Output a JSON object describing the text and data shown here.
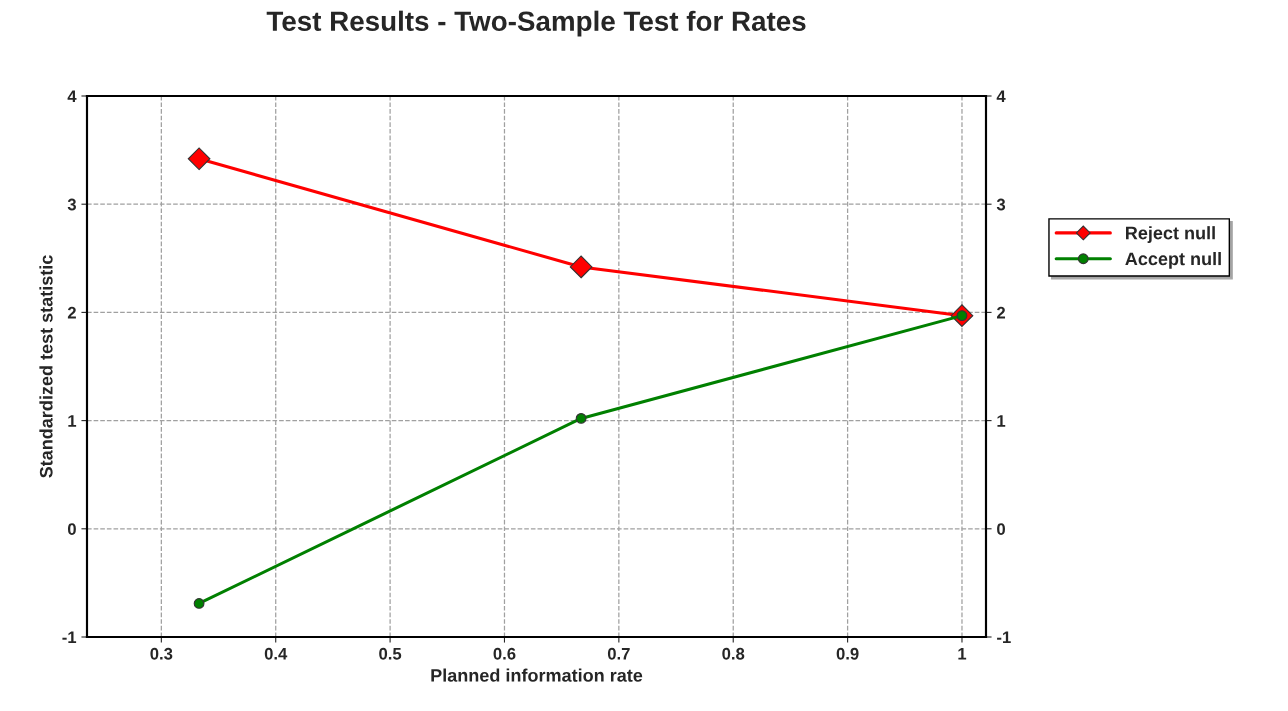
{
  "chart_data": {
    "type": "line",
    "title": "Test Results - Two-Sample Test for Rates",
    "xlabel": "Planned information rate",
    "ylabel": "Standardized test statistic",
    "x": [
      0.333,
      0.667,
      1.0
    ],
    "series": [
      {
        "name": "Reject null",
        "color": "#ff0000",
        "marker": "diamond",
        "values": [
          3.42,
          2.42,
          1.97
        ]
      },
      {
        "name": "Accept null",
        "color": "#008000",
        "marker": "circle",
        "values": [
          -0.69,
          1.02,
          1.97
        ]
      }
    ],
    "xlim": [
      0.235,
      1.021
    ],
    "xticks": [
      0.3,
      0.4,
      0.5,
      0.6,
      0.7,
      0.8,
      0.9,
      1
    ],
    "ylim": [
      -1,
      4
    ],
    "yticks": [
      -1,
      0,
      1,
      2,
      3,
      4
    ],
    "y2lim": [
      -1,
      4
    ],
    "y2ticks": [
      -1,
      0,
      1,
      2,
      3,
      4
    ],
    "grid": true,
    "legend": "right",
    "line_style": "solid"
  }
}
